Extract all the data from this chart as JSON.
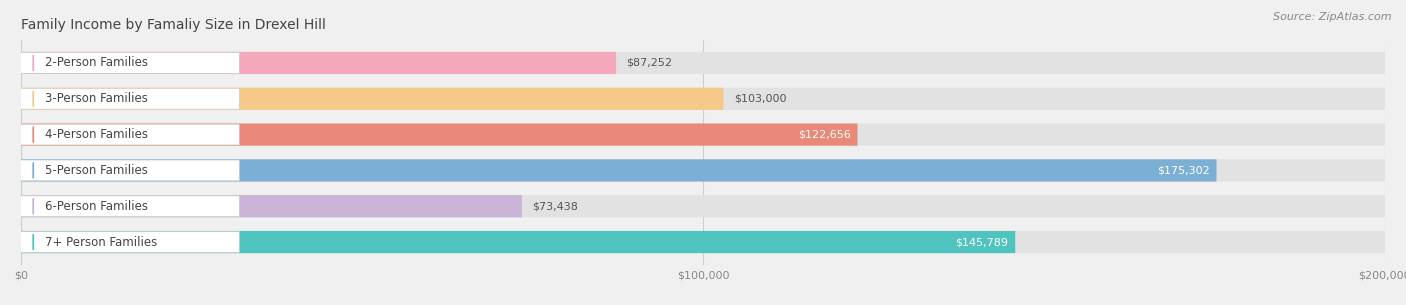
{
  "title": "Family Income by Famaliy Size in Drexel Hill",
  "source": "Source: ZipAtlas.com",
  "categories": [
    "2-Person Families",
    "3-Person Families",
    "4-Person Families",
    "5-Person Families",
    "6-Person Families",
    "7+ Person Families"
  ],
  "values": [
    87252,
    103000,
    122656,
    175302,
    73438,
    145789
  ],
  "bar_colors": [
    "#F5A8BC",
    "#F5C98A",
    "#E8897A",
    "#7BAFD4",
    "#C9B4D8",
    "#4FC4BF"
  ],
  "dot_colors": [
    "#F5A8BC",
    "#F5C98A",
    "#E8897A",
    "#7BAFD4",
    "#C9B4D8",
    "#4FC4BF"
  ],
  "value_inside": [
    false,
    false,
    true,
    true,
    false,
    true
  ],
  "value_text_colors": [
    "#555555",
    "#555555",
    "#ffffff",
    "#ffffff",
    "#555555",
    "#ffffff"
  ],
  "bg_color": "#f0f0f0",
  "bar_bg_color": "#e2e2e2",
  "label_box_color": "#ffffff",
  "xlim": [
    0,
    200000
  ],
  "xtick_labels": [
    "$0",
    "$100,000",
    "$200,000"
  ],
  "xtick_values": [
    0,
    100000,
    200000
  ],
  "title_fontsize": 10,
  "source_fontsize": 8,
  "label_fontsize": 8.5,
  "value_fontsize": 8
}
